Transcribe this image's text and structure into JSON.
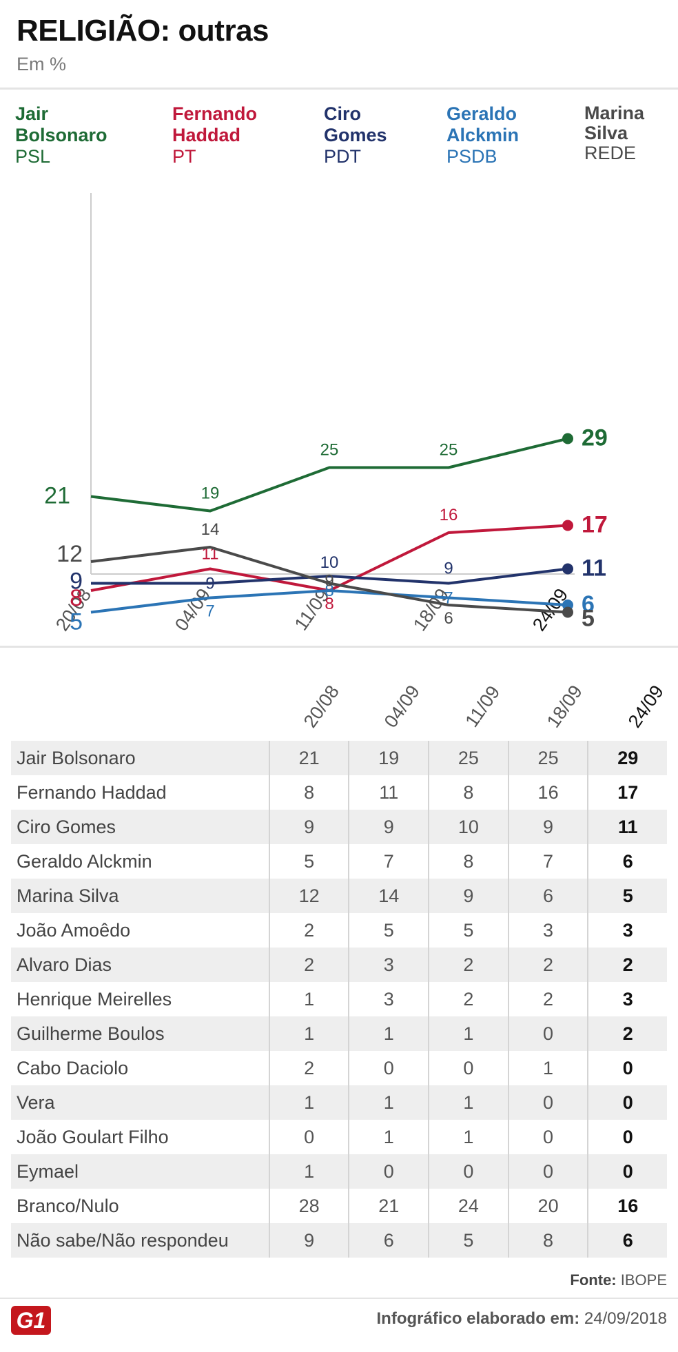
{
  "title": "RELIGIÃO: outras",
  "subtitle": "Em %",
  "colors": {
    "bolsonaro": "#1e6b35",
    "haddad": "#c0183b",
    "ciro": "#22336b",
    "alckmin": "#2b74b5",
    "marina": "#4a4a4a"
  },
  "legend": [
    {
      "name": "Jair Bolsonaro",
      "party": "PSL"
    },
    {
      "name": "Fernando Haddad",
      "party": "PT"
    },
    {
      "name": "Ciro Gomes",
      "party": "PDT"
    },
    {
      "name": "Geraldo Alckmin",
      "party": "PSDB"
    },
    {
      "name": "Marina Silva",
      "party": "REDE"
    }
  ],
  "chart_data": {
    "type": "line",
    "title": "RELIGIÃO: outras",
    "subtitle": "Em %",
    "categories": [
      "20/08",
      "04/09",
      "11/09",
      "18/09",
      "24/09"
    ],
    "ylim": [
      0,
      35
    ],
    "grid": false,
    "series": [
      {
        "name": "Jair Bolsonaro",
        "key": "bolsonaro",
        "values": [
          21,
          19,
          25,
          25,
          29
        ]
      },
      {
        "name": "Fernando Haddad",
        "key": "haddad",
        "values": [
          8,
          11,
          8,
          16,
          17
        ]
      },
      {
        "name": "Ciro Gomes",
        "key": "ciro",
        "values": [
          9,
          9,
          10,
          9,
          11
        ]
      },
      {
        "name": "Geraldo Alckmin",
        "key": "alckmin",
        "values": [
          5,
          7,
          8,
          7,
          6
        ]
      },
      {
        "name": "Marina Silva",
        "key": "marina",
        "values": [
          12,
          14,
          9,
          6,
          5
        ]
      }
    ]
  },
  "table": {
    "columns": [
      "20/08",
      "04/09",
      "11/09",
      "18/09",
      "24/09"
    ],
    "rows": [
      {
        "name": "Jair Bolsonaro",
        "values": [
          "21",
          "19",
          "25",
          "25",
          "29"
        ]
      },
      {
        "name": "Fernando Haddad",
        "values": [
          "8",
          "11",
          "8",
          "16",
          "17"
        ]
      },
      {
        "name": "Ciro Gomes",
        "values": [
          "9",
          "9",
          "10",
          "9",
          "11"
        ]
      },
      {
        "name": "Geraldo Alckmin",
        "values": [
          "5",
          "7",
          "8",
          "7",
          "6"
        ]
      },
      {
        "name": "Marina Silva",
        "values": [
          "12",
          "14",
          "9",
          "6",
          "5"
        ]
      },
      {
        "name": "João Amoêdo",
        "values": [
          "2",
          "5",
          "5",
          "3",
          "3"
        ]
      },
      {
        "name": "Alvaro Dias",
        "values": [
          "2",
          "3",
          "2",
          "2",
          "2"
        ]
      },
      {
        "name": "Henrique Meirelles",
        "values": [
          "1",
          "3",
          "2",
          "2",
          "3"
        ]
      },
      {
        "name": "Guilherme Boulos",
        "values": [
          "1",
          "1",
          "1",
          "0",
          "2"
        ]
      },
      {
        "name": "Cabo Daciolo",
        "values": [
          "2",
          "0",
          "0",
          "1",
          "0"
        ]
      },
      {
        "name": "Vera",
        "values": [
          "1",
          "1",
          "1",
          "0",
          "0"
        ]
      },
      {
        "name": "João Goulart Filho",
        "values": [
          "0",
          "1",
          "1",
          "0",
          "0"
        ]
      },
      {
        "name": "Eymael",
        "values": [
          "1",
          "0",
          "0",
          "0",
          "0"
        ]
      },
      {
        "name": "Branco/Nulo",
        "values": [
          "28",
          "21",
          "24",
          "20",
          "16"
        ]
      },
      {
        "name": "Não sabe/Não respondeu",
        "values": [
          "9",
          "6",
          "5",
          "8",
          "6"
        ]
      }
    ]
  },
  "source": {
    "label": "Fonte:",
    "value": "IBOPE"
  },
  "footer": {
    "label": "Infográfico elaborado em:",
    "date": "24/09/2018"
  },
  "logo": "G1"
}
